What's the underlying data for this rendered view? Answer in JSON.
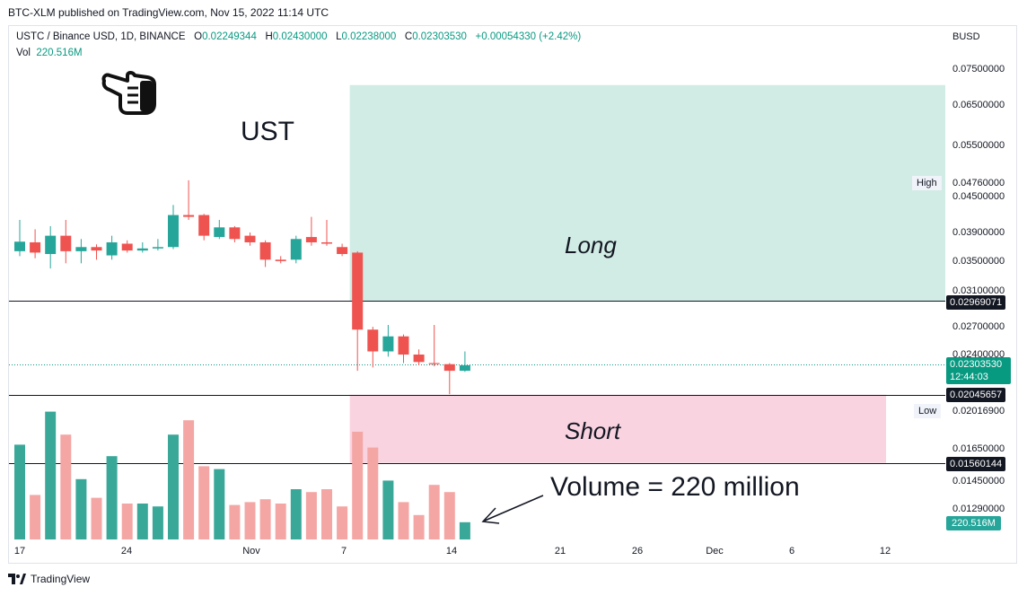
{
  "publish_line": "BTC-XLM published on TradingView.com, Nov 15, 2022 11:14 UTC",
  "legend": {
    "symbol": "USTC / Binance USD, 1D, BINANCE",
    "o_key": "O",
    "o_val": "0.02249344",
    "h_key": "H",
    "h_val": "0.02430000",
    "l_key": "L",
    "l_val": "0.02238000",
    "c_key": "C",
    "c_val": "0.02303530",
    "change": "+0.00054330 (+2.42%)",
    "vol_key": "Vol",
    "vol_val": "220.516M"
  },
  "currency": "BUSD",
  "annotations": {
    "title": "UST",
    "long": "Long",
    "short": "Short",
    "volume_note": "Volume = 220 million"
  },
  "price_axis": {
    "ticks": [
      "0.07500000",
      "0.06500000",
      "0.05500000",
      "0.04500000",
      "0.03900000",
      "0.03500000",
      "0.03100000",
      "0.02700000",
      "0.02400000",
      "0.02016900",
      "0.01650000",
      "0.01450000",
      "0.01290000"
    ],
    "high_key": "High",
    "high_val": "0.04760000",
    "low_key": "Low",
    "low_val": "0.02016900",
    "line_upper": "0.02969071",
    "last_price": "0.02303530",
    "countdown": "12:44:03",
    "line_mid": "0.02045657",
    "line_lower": "0.01560144",
    "volume_tag": "220.516M"
  },
  "x_axis": [
    "17",
    "24",
    "Nov",
    "7",
    "14",
    "21",
    "26",
    "Dec",
    "6",
    "12"
  ],
  "footer": "TradingView",
  "colors": {
    "up": "#26a69a",
    "down": "#ef5350",
    "up_vol": "#3aa899",
    "down_vol": "#f4a6a4",
    "long_zone": "#d1ece5",
    "short_zone": "#f9d3df"
  },
  "chart_data": {
    "type": "candlestick",
    "symbol": "USTC / Binance USD",
    "interval": "1D",
    "price_scale": "log",
    "candles": [
      {
        "o": 0.0362,
        "h": 0.041,
        "l": 0.0355,
        "c": 0.0376,
        "v": 0.66
      },
      {
        "o": 0.0375,
        "h": 0.0395,
        "l": 0.0352,
        "c": 0.036,
        "v": 0.31
      },
      {
        "o": 0.0358,
        "h": 0.04,
        "l": 0.0338,
        "c": 0.0385,
        "v": 0.89
      },
      {
        "o": 0.0385,
        "h": 0.041,
        "l": 0.0345,
        "c": 0.0362,
        "v": 0.73
      },
      {
        "o": 0.0362,
        "h": 0.038,
        "l": 0.0345,
        "c": 0.0368,
        "v": 0.42
      },
      {
        "o": 0.0368,
        "h": 0.0372,
        "l": 0.035,
        "c": 0.0363,
        "v": 0.29
      },
      {
        "o": 0.0356,
        "h": 0.0385,
        "l": 0.035,
        "c": 0.0375,
        "v": 0.58
      },
      {
        "o": 0.0373,
        "h": 0.0378,
        "l": 0.036,
        "c": 0.0363,
        "v": 0.25
      },
      {
        "o": 0.0363,
        "h": 0.0375,
        "l": 0.036,
        "c": 0.0366,
        "v": 0.25
      },
      {
        "o": 0.0366,
        "h": 0.038,
        "l": 0.0363,
        "c": 0.0368,
        "v": 0.23
      },
      {
        "o": 0.0368,
        "h": 0.0435,
        "l": 0.0365,
        "c": 0.0418,
        "v": 0.73
      },
      {
        "o": 0.0418,
        "h": 0.048,
        "l": 0.041,
        "c": 0.0415,
        "v": 0.83
      },
      {
        "o": 0.0418,
        "h": 0.042,
        "l": 0.0378,
        "c": 0.0385,
        "v": 0.51
      },
      {
        "o": 0.0383,
        "h": 0.041,
        "l": 0.038,
        "c": 0.0398,
        "v": 0.49
      },
      {
        "o": 0.0398,
        "h": 0.04,
        "l": 0.0375,
        "c": 0.038,
        "v": 0.24
      },
      {
        "o": 0.0385,
        "h": 0.039,
        "l": 0.037,
        "c": 0.0375,
        "v": 0.26
      },
      {
        "o": 0.0375,
        "h": 0.0378,
        "l": 0.034,
        "c": 0.035,
        "v": 0.28
      },
      {
        "o": 0.035,
        "h": 0.0355,
        "l": 0.0345,
        "c": 0.0348,
        "v": 0.25
      },
      {
        "o": 0.035,
        "h": 0.0385,
        "l": 0.0345,
        "c": 0.038,
        "v": 0.35
      },
      {
        "o": 0.0383,
        "h": 0.0415,
        "l": 0.037,
        "c": 0.0375,
        "v": 0.33
      },
      {
        "o": 0.0375,
        "h": 0.041,
        "l": 0.037,
        "c": 0.0373,
        "v": 0.35
      },
      {
        "o": 0.0368,
        "h": 0.0373,
        "l": 0.0355,
        "c": 0.0358,
        "v": 0.23
      },
      {
        "o": 0.036,
        "h": 0.0362,
        "l": 0.0225,
        "c": 0.0265,
        "v": 0.75
      },
      {
        "o": 0.0265,
        "h": 0.0268,
        "l": 0.0228,
        "c": 0.0243,
        "v": 0.64
      },
      {
        "o": 0.0243,
        "h": 0.027,
        "l": 0.0238,
        "c": 0.0258,
        "v": 0.41
      },
      {
        "o": 0.0258,
        "h": 0.026,
        "l": 0.0232,
        "c": 0.024,
        "v": 0.26
      },
      {
        "o": 0.024,
        "h": 0.0245,
        "l": 0.023,
        "c": 0.0233,
        "v": 0.17
      },
      {
        "o": 0.0232,
        "h": 0.027,
        "l": 0.0229,
        "c": 0.0231,
        "v": 0.38
      },
      {
        "o": 0.0231,
        "h": 0.0232,
        "l": 0.0205,
        "c": 0.0225,
        "v": 0.33
      },
      {
        "o": 0.0225,
        "h": 0.0243,
        "l": 0.0224,
        "c": 0.023,
        "v": 0.12
      }
    ],
    "horizontal_levels": [
      0.02969071,
      0.02045657,
      0.01560144
    ],
    "last_price": 0.0230353,
    "long_zone": {
      "from": 0.02969071,
      "to": 0.0701,
      "label": "Long"
    },
    "short_zone": {
      "from": 0.01560144,
      "to": 0.02045657,
      "label": "Short"
    },
    "volume_last": "220.516M",
    "x_tick_labels": [
      "17",
      "24",
      "Nov",
      "7",
      "14",
      "21",
      "26",
      "Dec",
      "6",
      "12"
    ]
  }
}
